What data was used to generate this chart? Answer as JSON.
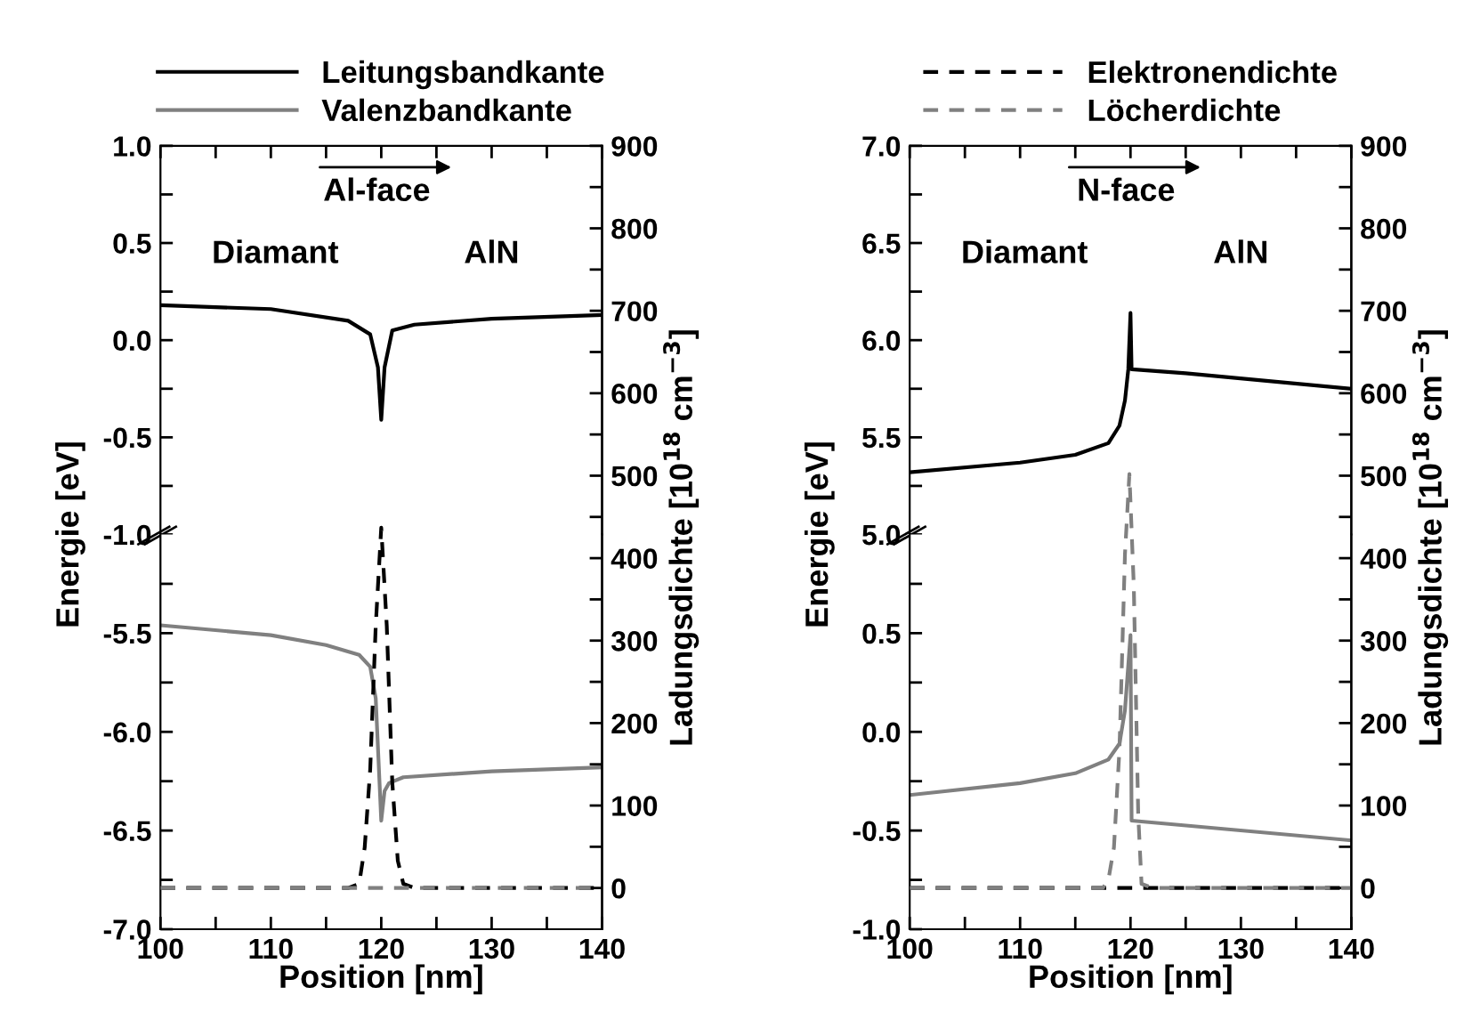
{
  "chart_data": [
    {
      "type": "line",
      "line_style": "solid",
      "legend": "top",
      "tick_labels": "y",
      "ylabel": "Energie [eV]",
      "annotations": [
        "Al-face",
        "Diamant",
        "AlN"
      ],
      "xlim": [
        100,
        140
      ],
      "xticks": [
        100,
        {
          "value": 105,
          "label": null
        },
        110,
        {
          "value": 115,
          "label": null
        },
        120,
        {
          "value": 125,
          "label": null
        },
        130,
        {
          "value": 135,
          "label": null
        },
        140
      ],
      "ylim": [
        -1.0,
        1.0
      ],
      "yticks": [
        {
          "value": -1.0,
          "label": "-1.0"
        },
        {
          "value": -0.75,
          "label": null
        },
        -0.5,
        {
          "value": -0.25,
          "label": null
        },
        {
          "value": 0,
          "label": "0.0"
        },
        {
          "value": 0.25,
          "label": null
        },
        0.5,
        {
          "value": 0.75,
          "label": null
        },
        {
          "value": 1,
          "label": "1.0"
        }
      ],
      "series": [
        {
          "name": "Leitungsbandkante",
          "color": "#000000",
          "x": [
            100,
            110,
            117,
            119,
            119.7,
            120,
            120.3,
            121,
            123,
            130,
            140
          ],
          "values": [
            0.18,
            0.16,
            0.1,
            0.03,
            -0.14,
            -0.41,
            -0.14,
            0.05,
            0.08,
            0.11,
            0.13
          ]
        }
      ]
    },
    {
      "type": "line",
      "line_style": "solid",
      "legend": "top",
      "xlabel": "Position [nm]",
      "y2label": "Ladungsdichte [10$^{18}$ cm$^{−3}$]",
      "xlim": [
        100,
        140
      ],
      "xticks": [
        100,
        {
          "value": 105,
          "label": null
        },
        110,
        {
          "value": 115,
          "label": null
        },
        120,
        {
          "value": 125,
          "label": null
        },
        130,
        {
          "value": 135,
          "label": null
        },
        140
      ],
      "ylim": [
        -7.0,
        -5.0
      ],
      "yticks": [
        {
          "value": -7,
          "label": "-7.0"
        },
        {
          "value": -6.75,
          "label": null
        },
        -6.5,
        {
          "value": -6.25,
          "label": null
        },
        {
          "value": -6,
          "label": "-6.0"
        },
        {
          "value": -5.75,
          "label": null
        },
        -5.5,
        {
          "value": -5.25,
          "label": null
        }
      ],
      "y2lim": [
        -50,
        900
      ],
      "y2ticks": [
        0,
        {
          "value": 50,
          "label": null
        },
        100,
        {
          "value": 150,
          "label": null
        },
        200,
        {
          "value": 250,
          "label": null
        },
        300,
        {
          "value": 350,
          "label": null
        },
        400,
        {
          "value": 450,
          "label": null
        },
        500,
        {
          "value": 550,
          "label": null
        },
        600,
        {
          "value": 650,
          "label": null
        },
        700,
        {
          "value": 750,
          "label": null
        },
        800,
        {
          "value": 850,
          "label": null
        },
        900
      ],
      "series": [
        {
          "name": "Valenzbandkante",
          "color": "#808080",
          "x": [
            100,
            110,
            115,
            118,
            119,
            119.5,
            120,
            120.3,
            120.7,
            122,
            130,
            140
          ],
          "values": [
            -5.46,
            -5.51,
            -5.56,
            -5.61,
            -5.67,
            -5.83,
            -6.45,
            -6.3,
            -6.26,
            -6.23,
            -6.2,
            -6.18
          ]
        },
        {
          "axis": "y2",
          "line_style": "dashed",
          "color": "#000000",
          "x": [
            100,
            117,
            118,
            118.5,
            119,
            119.5,
            120,
            120.5,
            121,
            121.5,
            122,
            123,
            140
          ],
          "values": [
            0,
            0,
            5,
            49,
            144,
            318,
            437,
            318,
            128,
            33,
            5,
            0,
            0
          ]
        },
        {
          "axis": "y2",
          "line_style": "dashed",
          "color": "#808080",
          "x": [
            100,
            140
          ],
          "values": [
            0,
            0
          ]
        }
      ]
    },
    {
      "type": "line",
      "line_style": "solid",
      "tick_labels": "y",
      "ylabel": "Energie [eV]",
      "annotations": [
        "N-face",
        "Diamant",
        "AlN"
      ],
      "xlim": [
        100,
        140
      ],
      "xticks": [
        100,
        {
          "value": 105,
          "label": null
        },
        110,
        {
          "value": 115,
          "label": null
        },
        120,
        {
          "value": 125,
          "label": null
        },
        130,
        {
          "value": 135,
          "label": null
        },
        140
      ],
      "ylim": [
        5.0,
        7.0
      ],
      "yticks": [
        {
          "value": 5,
          "label": "5.0"
        },
        {
          "value": 5.25,
          "label": null
        },
        5.5,
        {
          "value": 5.75,
          "label": null
        },
        {
          "value": 6,
          "label": "6.0"
        },
        {
          "value": 6.25,
          "label": null
        },
        6.5,
        {
          "value": 6.75,
          "label": null
        },
        {
          "value": 7,
          "label": "7.0"
        }
      ],
      "series": [
        {
          "color": "#000000",
          "x": [
            100,
            110,
            115,
            118,
            119,
            119.5,
            119.8,
            120,
            120.1,
            125,
            140
          ],
          "values": [
            5.32,
            5.37,
            5.41,
            5.47,
            5.56,
            5.69,
            5.85,
            6.14,
            5.85,
            5.83,
            5.75
          ]
        }
      ]
    },
    {
      "type": "line",
      "line_style": "solid",
      "legend": "top",
      "xlabel": "Position [nm]",
      "y2label": "Ladungsdichte [10$^{18}$ cm$^{−3}$]",
      "xlim": [
        100,
        140
      ],
      "xticks": [
        100,
        {
          "value": 105,
          "label": null
        },
        110,
        {
          "value": 115,
          "label": null
        },
        120,
        {
          "value": 125,
          "label": null
        },
        130,
        {
          "value": 135,
          "label": null
        },
        140
      ],
      "ylim": [
        -1.0,
        1.0
      ],
      "yticks": [
        {
          "value": -1.0,
          "label": "-1.0"
        },
        {
          "value": -0.75,
          "label": null
        },
        -0.5,
        {
          "value": -0.25,
          "label": null
        },
        {
          "value": 0,
          "label": "0.0"
        },
        {
          "value": 0.25,
          "label": null
        },
        0.5,
        {
          "value": 0.75,
          "label": null
        }
      ],
      "y2lim": [
        -50,
        900
      ],
      "y2ticks": [
        0,
        {
          "value": 50,
          "label": null
        },
        100,
        {
          "value": 150,
          "label": null
        },
        200,
        {
          "value": 250,
          "label": null
        },
        300,
        {
          "value": 350,
          "label": null
        },
        400,
        {
          "value": 450,
          "label": null
        },
        500,
        {
          "value": 550,
          "label": null
        },
        600,
        {
          "value": 650,
          "label": null
        },
        700,
        {
          "value": 750,
          "label": null
        },
        800,
        {
          "value": 850,
          "label": null
        },
        900
      ],
      "series": [
        {
          "color": "#808080",
          "x": [
            100,
            110,
            115,
            118,
            119,
            119.5,
            120,
            120.1,
            140
          ],
          "values": [
            -0.32,
            -0.26,
            -0.21,
            -0.14,
            -0.06,
            0.11,
            0.49,
            -0.45,
            -0.55
          ]
        },
        {
          "name": "Elektronendichte",
          "axis": "y2",
          "line_style": "dashed",
          "color": "#000000",
          "x": [
            100,
            140
          ],
          "values": [
            0,
            0
          ]
        },
        {
          "name": "Löcherdichte",
          "axis": "y2",
          "line_style": "dashed",
          "color": "#808080",
          "x": [
            100,
            117.5,
            118,
            118.5,
            119,
            119.5,
            119.9,
            120.3,
            120.7,
            121,
            122,
            140
          ],
          "values": [
            0,
            0,
            10,
            49,
            168,
            405,
            502,
            366,
            89,
            5,
            0,
            0
          ]
        }
      ]
    }
  ]
}
